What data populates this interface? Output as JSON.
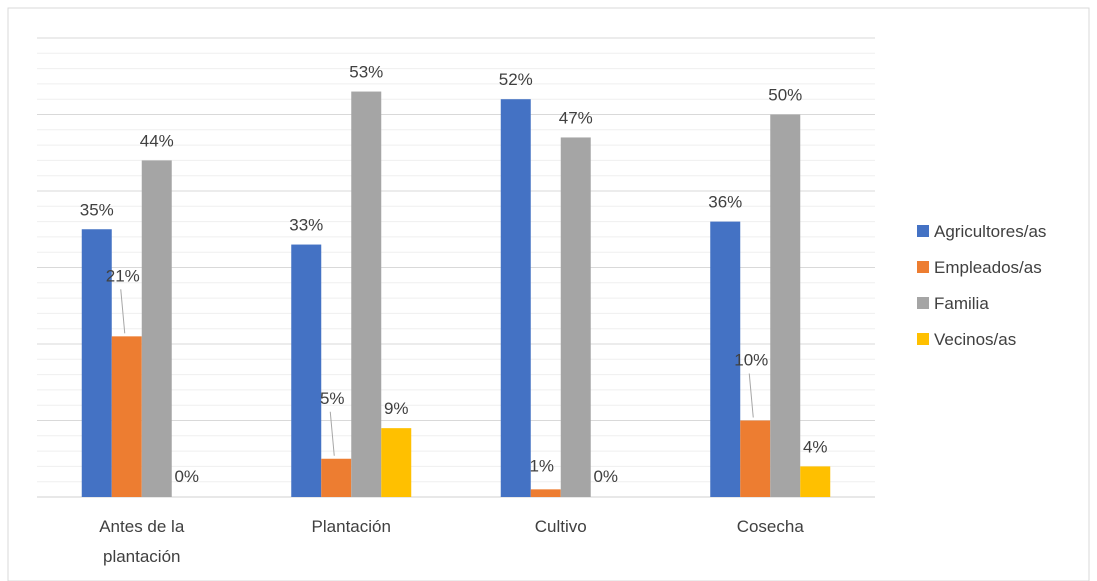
{
  "chart_data": {
    "type": "bar",
    "title": "",
    "xlabel": "",
    "ylabel": "",
    "ylim": [
      0,
      60
    ],
    "grid": true,
    "legend_position": "right",
    "categories": [
      [
        "Antes de la",
        "plantación"
      ],
      [
        "Plantación"
      ],
      [
        "Cultivo"
      ],
      [
        "Cosecha"
      ]
    ],
    "series": [
      {
        "name": "Agricultores/as",
        "color": "#4472C4",
        "values": [
          35,
          33,
          52,
          36
        ],
        "labels": [
          "35%",
          "33%",
          "52%",
          "36%"
        ]
      },
      {
        "name": "Empleados/as",
        "color": "#ED7D31",
        "values": [
          21,
          5,
          1,
          10
        ],
        "labels": [
          "21%",
          "5%",
          "1%",
          "10%"
        ]
      },
      {
        "name": "Familia",
        "color": "#A5A5A5",
        "values": [
          44,
          53,
          47,
          50
        ],
        "labels": [
          "44%",
          "53%",
          "47%",
          "50%"
        ]
      },
      {
        "name": "Vecinos/as",
        "color": "#FFC000",
        "values": [
          0,
          9,
          0,
          4
        ],
        "labels": [
          "0%",
          "9%",
          "0%",
          "4%"
        ]
      }
    ]
  }
}
